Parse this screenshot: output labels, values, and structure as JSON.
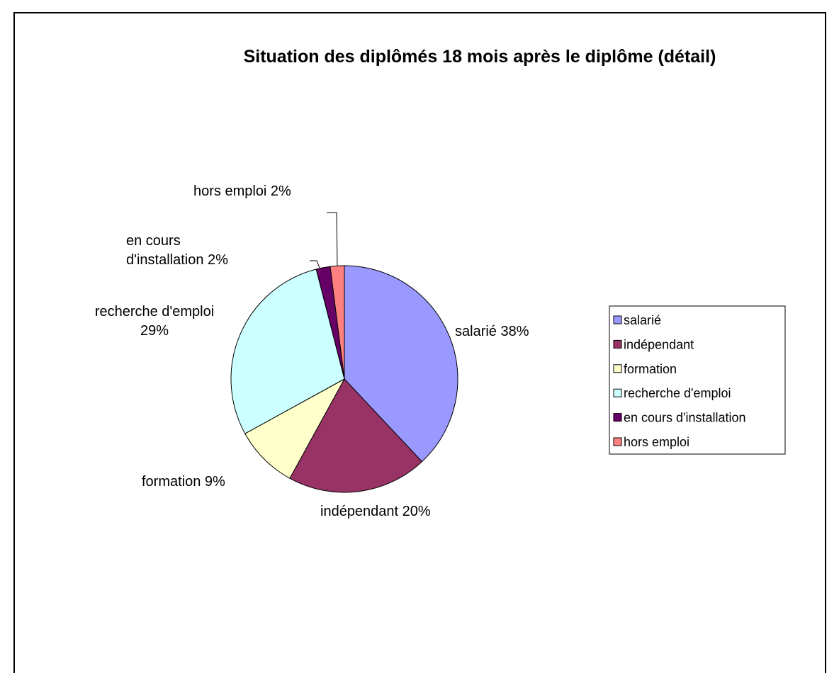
{
  "chart_data": {
    "type": "pie",
    "title": "Situation des diplômés 18 mois après le diplôme (détail)",
    "categories": [
      "salarié",
      "indépendant",
      "formation",
      "recherche d'emploi",
      "en cours d'installation",
      "hors emploi"
    ],
    "values": [
      38,
      20,
      9,
      29,
      2,
      2
    ],
    "value_labels": [
      "salarié 38%",
      "indépendant 20%",
      "formation  9%",
      "recherche d'emploi\n29%",
      "en cours\nd'installation 2%",
      "hors emploi 2%"
    ],
    "colors": [
      "#9999ff",
      "#993366",
      "#ffffcc",
      "#ccffff",
      "#660066",
      "#ff8080"
    ],
    "legend": "right"
  }
}
